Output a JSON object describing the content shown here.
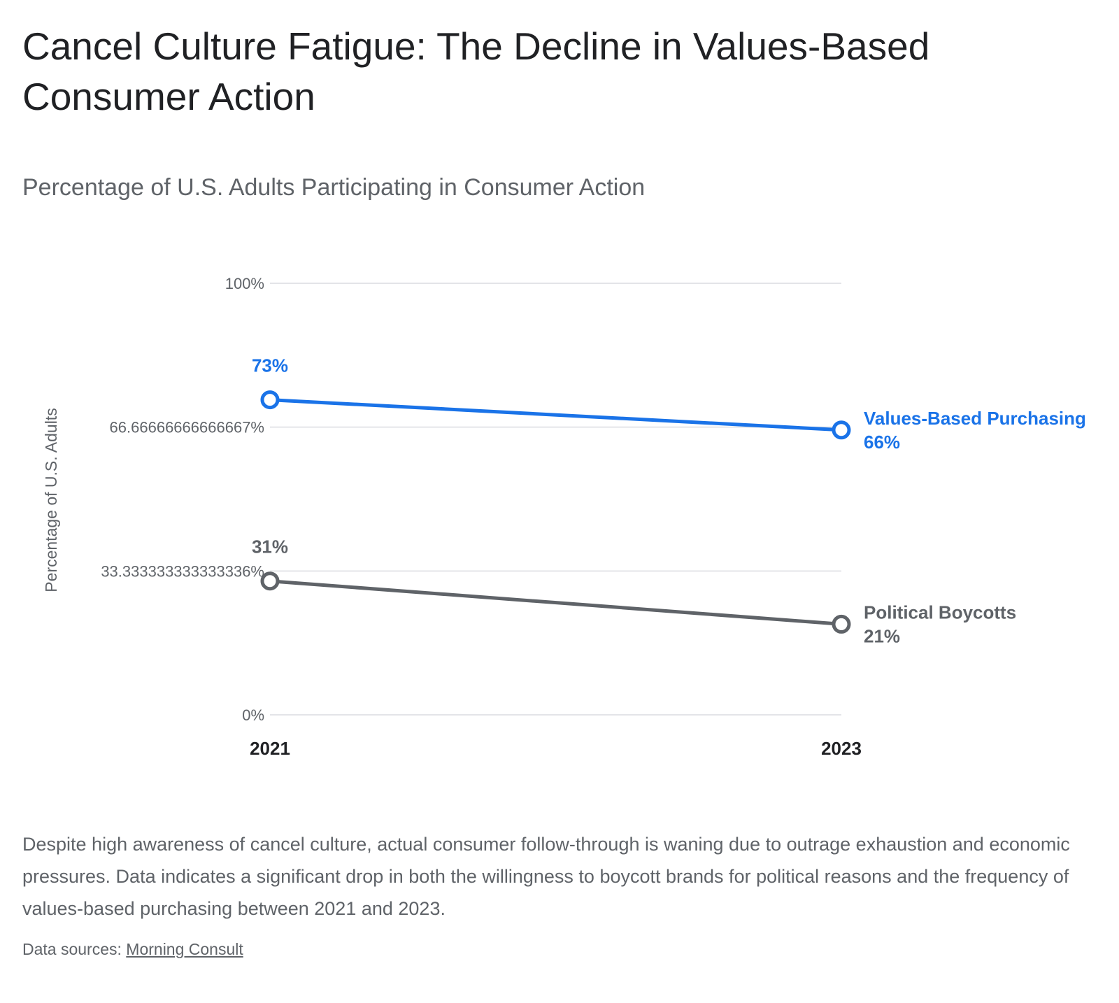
{
  "title": "Cancel Culture Fatigue: The Decline in Values-Based Consumer Action",
  "subtitle": "Percentage of U.S. Adults Participating in Consumer Action",
  "description": "Despite high awareness of cancel culture, actual consumer follow-through is waning due to outrage exhaustion and economic pressures. Data indicates a significant drop in both the willingness to boycott brands for political reasons and the frequency of values-based purchasing between 2021 and 2023.",
  "sources": {
    "prefix": "Data sources: ",
    "link_text": "Morning Consult"
  },
  "colors": {
    "values_series": "#1a73e8",
    "boycott_series": "#5f6368",
    "grid": "#dadce0",
    "axis_text": "#5f6368"
  },
  "chart_data": {
    "type": "line",
    "x": [
      "2021",
      "2023"
    ],
    "ylabel": "Percentage of U.S. Adults",
    "xlabel": "",
    "ylim": [
      0,
      100
    ],
    "y_ticks": [
      {
        "value": 0,
        "label": "0%"
      },
      {
        "value": 33.333333333333336,
        "label": "33.333333333333336%"
      },
      {
        "value": 66.66666666666667,
        "label": "66.66666666666667%"
      },
      {
        "value": 100,
        "label": "100%"
      }
    ],
    "grid": true,
    "legend": "direct labels at line ends",
    "series": [
      {
        "name": "Values-Based Purchasing",
        "values": [
          73,
          66
        ],
        "point_labels": [
          "73%",
          "66%"
        ],
        "color": "#1a73e8"
      },
      {
        "name": "Political Boycotts",
        "values": [
          31,
          21
        ],
        "point_labels": [
          "31%",
          "21%"
        ],
        "color": "#5f6368"
      }
    ]
  }
}
